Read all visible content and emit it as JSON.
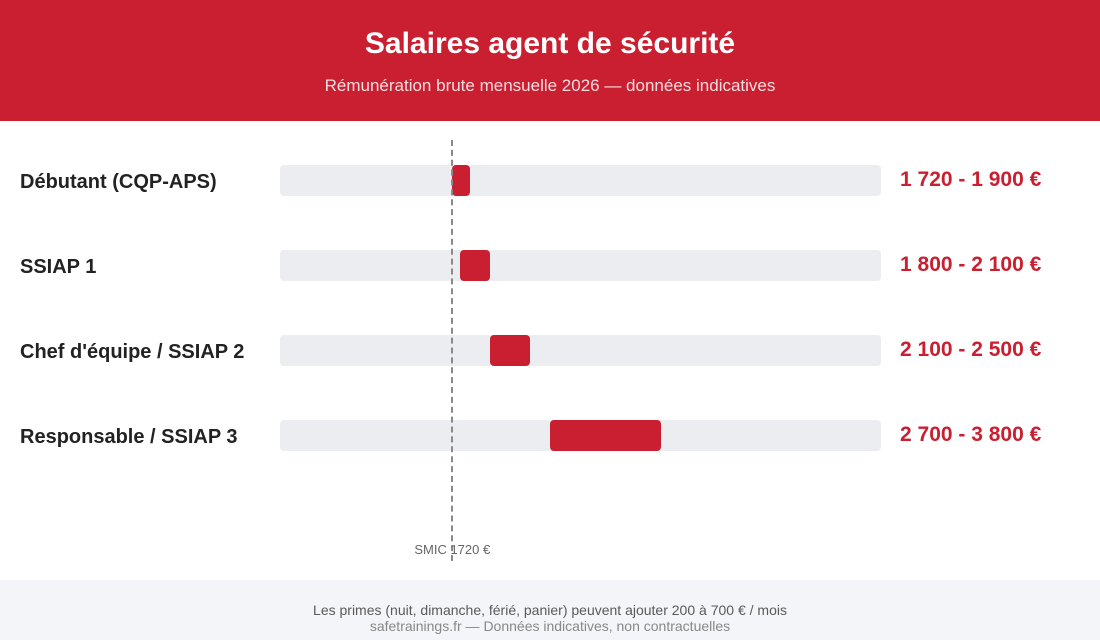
{
  "header": {
    "title": "Salaires agent de sécurité",
    "subtitle": "Rémunération brute mensuelle 2026 — données indicatives"
  },
  "chart_data": {
    "type": "bar",
    "orientation": "horizontal-range",
    "title": "Salaires agent de sécurité",
    "subtitle": "Rémunération brute mensuelle 2026 — données indicatives",
    "unit": "€",
    "xlim": [
      0,
      6000
    ],
    "grid": false,
    "categories": [
      "Débutant (CQP-APS)",
      "SSIAP 1",
      "Chef d'équipe / SSIAP 2",
      "Responsable / SSIAP 3"
    ],
    "ranges": [
      {
        "min": 1720,
        "max": 1900
      },
      {
        "min": 1800,
        "max": 2100
      },
      {
        "min": 2100,
        "max": 2500
      },
      {
        "min": 2700,
        "max": 3800
      }
    ],
    "range_labels": [
      "1 720 - 1 900 €",
      "1 800 - 2 100 €",
      "2 100 - 2 500 €",
      "2 700 - 3 800 €"
    ],
    "reference_line": {
      "value": 1720,
      "label": "SMIC 1720 €"
    },
    "colors": {
      "bar": "#c91f30",
      "track": "#ecedf1",
      "reference": "#8a8a8a"
    }
  },
  "footer": {
    "note": "Les primes (nuit, dimanche, férié, panier) peuvent ajouter 200 à 700 € / mois",
    "source": "safetrainings.fr — Données indicatives, non contractuelles"
  },
  "colors": {
    "brand": "#c91f30",
    "footer_bg": "#f4f5f8"
  }
}
